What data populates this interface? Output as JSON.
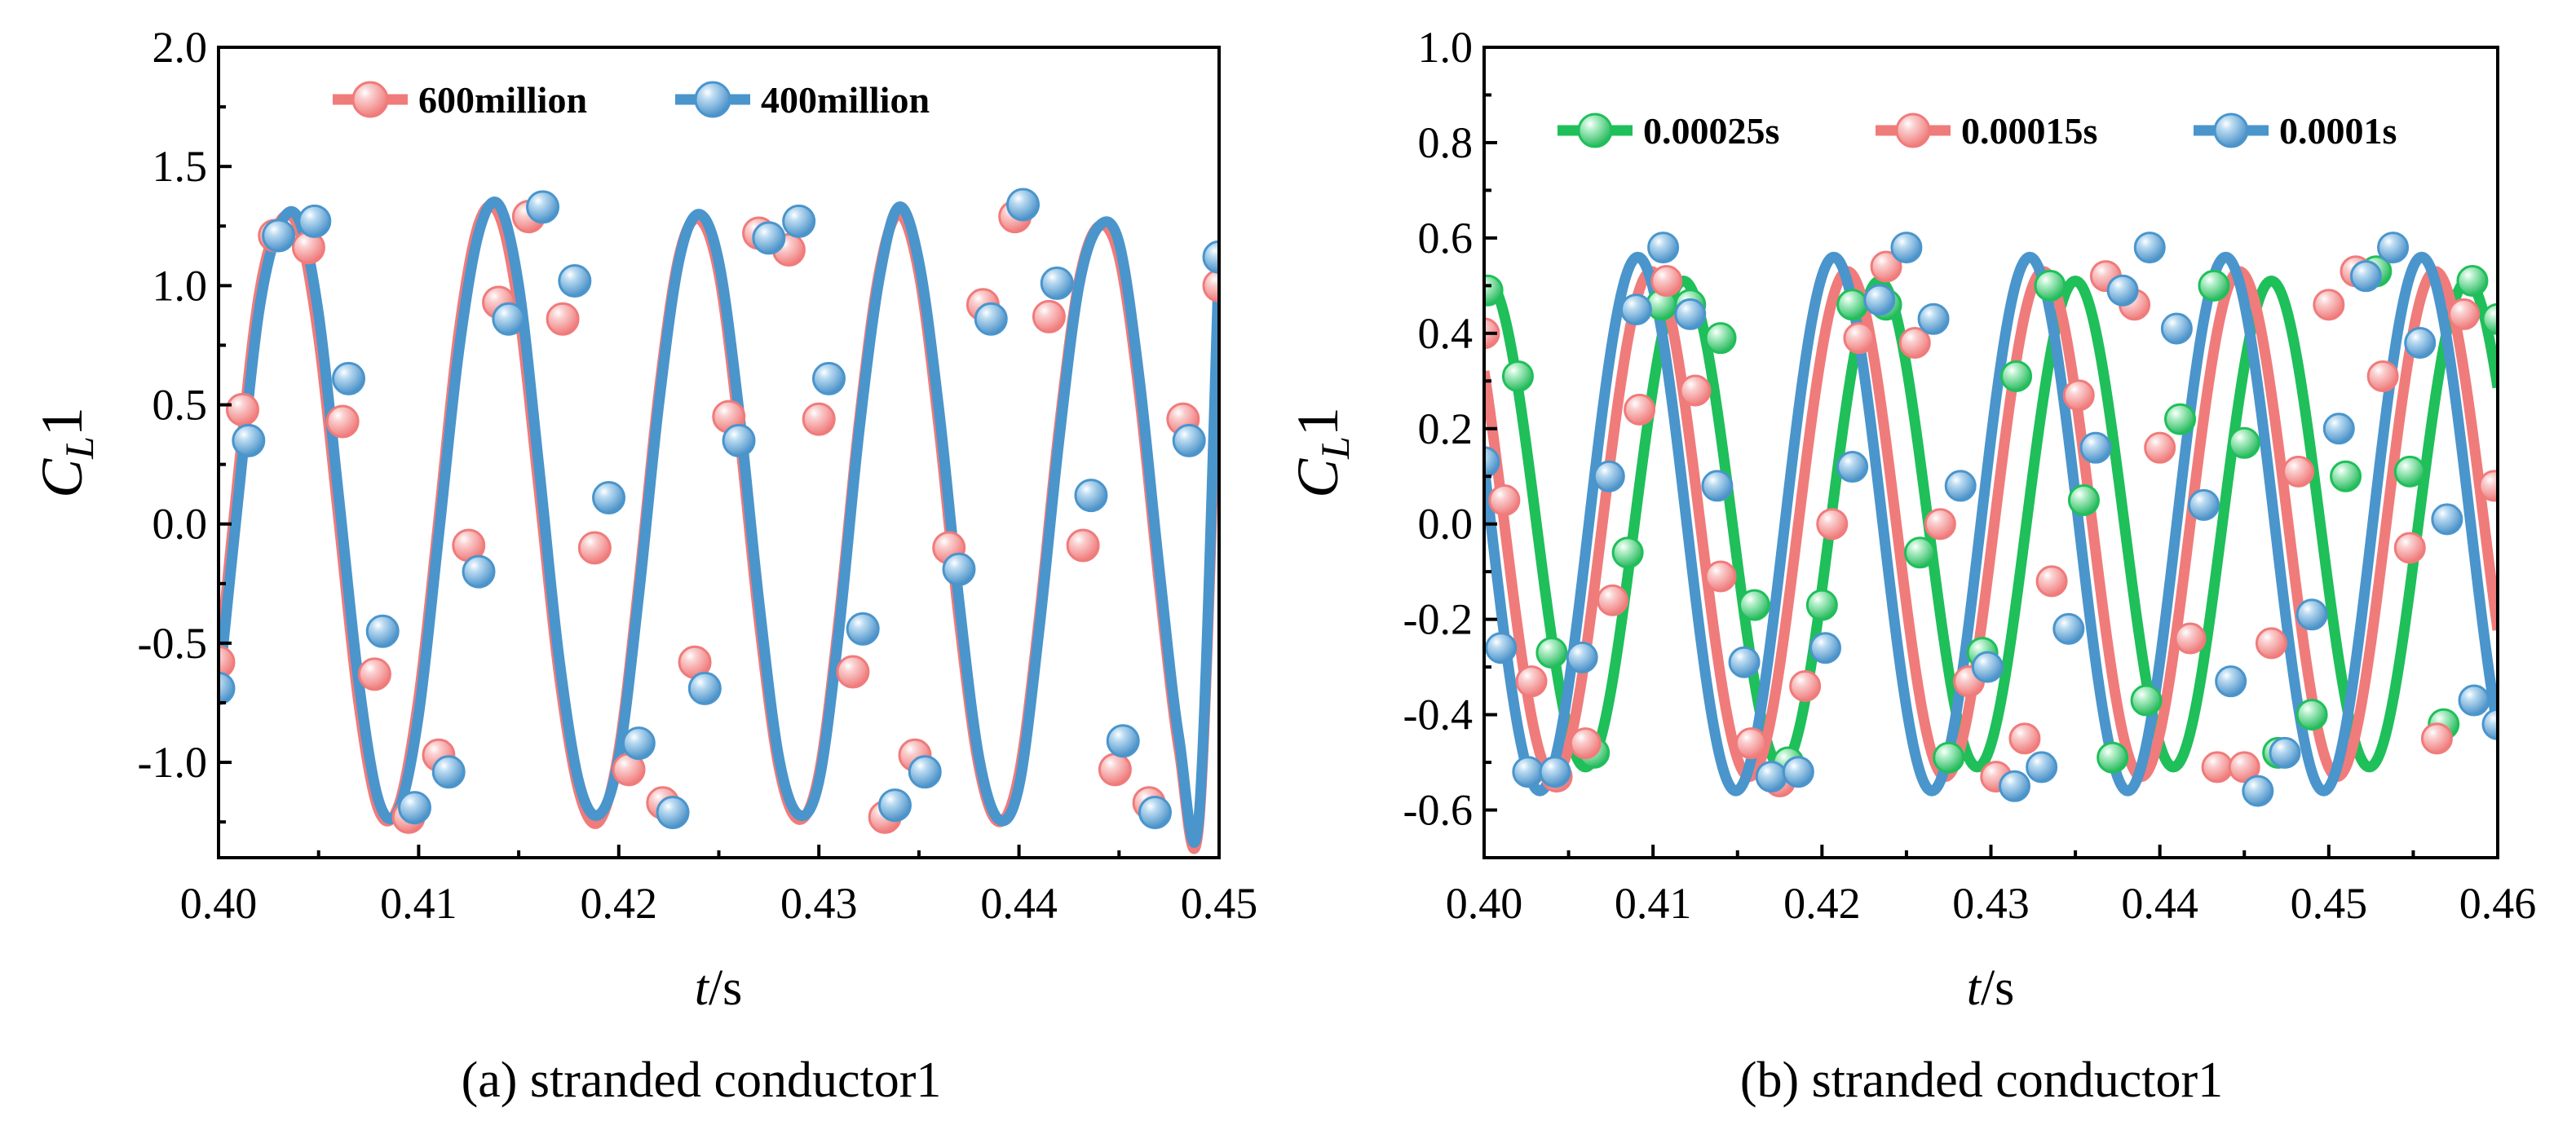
{
  "chart_data": [
    {
      "type": "line",
      "panel": "a",
      "caption": "(a) stranded conductor1",
      "xlabel_italic": "t",
      "xlabel_rest": "/s",
      "ylabel_main": "C",
      "ylabel_sub": "L",
      "ylabel_tail": "1",
      "xlim": [
        0.4,
        0.45
      ],
      "ylim": [
        -1.4,
        2.0
      ],
      "xticks": [
        "0.40",
        "0.41",
        "0.42",
        "0.43",
        "0.44",
        "0.45"
      ],
      "xtick_values": [
        0.4,
        0.41,
        0.42,
        0.43,
        0.44,
        0.45
      ],
      "yticks": [
        "-1.0",
        "-0.5",
        "0.0",
        "0.5",
        "1.0",
        "1.5",
        "2.0"
      ],
      "ytick_values": [
        -1.0,
        -0.5,
        0.0,
        0.5,
        1.0,
        1.5,
        2.0
      ],
      "legend_position": "top",
      "series": [
        {
          "name": "600million",
          "color": "#f07b7b",
          "marker_color": "#f7a8a8",
          "x": [
            0.4,
            0.401,
            0.402,
            0.403,
            0.404,
            0.405,
            0.406,
            0.407,
            0.408,
            0.409,
            0.41,
            0.411,
            0.412,
            0.413,
            0.414,
            0.415,
            0.416,
            0.417,
            0.418,
            0.419,
            0.42,
            0.421,
            0.422,
            0.423,
            0.424,
            0.425,
            0.426,
            0.427,
            0.428,
            0.429,
            0.43,
            0.431,
            0.432,
            0.433,
            0.434,
            0.435,
            0.436,
            0.437,
            0.438,
            0.439,
            0.44,
            0.441,
            0.442,
            0.443,
            0.444,
            0.445,
            0.446,
            0.447,
            0.448,
            0.449,
            0.45
          ],
          "y": [
            -0.62,
            0.22,
            0.95,
            1.26,
            1.24,
            0.78,
            0.02,
            -0.75,
            -1.2,
            -1.18,
            -0.73,
            0.02,
            0.8,
            1.26,
            1.3,
            0.9,
            0.15,
            -0.62,
            -1.12,
            -1.25,
            -0.95,
            -0.25,
            0.55,
            1.12,
            1.28,
            1.05,
            0.4,
            -0.4,
            -1.02,
            -1.24,
            -1.05,
            -0.4,
            0.42,
            1.05,
            1.3,
            1.05,
            0.4,
            -0.4,
            -1.02,
            -1.25,
            -1.05,
            -0.4,
            0.4,
            1.02,
            1.25,
            1.12,
            0.55,
            -0.25,
            -0.95,
            -1.25,
            0.98
          ],
          "markers_x": [
            0.4,
            0.4012,
            0.4028,
            0.4045,
            0.4062,
            0.4078,
            0.4095,
            0.411,
            0.4125,
            0.414,
            0.4155,
            0.4172,
            0.4188,
            0.4205,
            0.4222,
            0.4238,
            0.4255,
            0.427,
            0.4285,
            0.43,
            0.4317,
            0.4333,
            0.4348,
            0.4365,
            0.4382,
            0.4398,
            0.4415,
            0.4432,
            0.4448,
            0.4465,
            0.4482,
            0.45
          ],
          "markers_y": [
            -0.58,
            0.48,
            1.21,
            1.16,
            0.43,
            -0.63,
            -1.23,
            -0.97,
            -0.09,
            0.93,
            1.29,
            0.86,
            -0.1,
            -1.03,
            -1.17,
            -0.58,
            0.45,
            1.22,
            1.15,
            0.44,
            -0.62,
            -1.23,
            -0.97,
            -0.1,
            0.92,
            1.29,
            0.87,
            -0.09,
            -1.03,
            -1.17,
            0.44,
            1.0
          ]
        },
        {
          "name": "400million",
          "color": "#4a95cc",
          "marker_color": "#7fb8e0",
          "x": [
            0.4,
            0.401,
            0.402,
            0.403,
            0.404,
            0.405,
            0.406,
            0.407,
            0.408,
            0.409,
            0.41,
            0.411,
            0.412,
            0.413,
            0.414,
            0.415,
            0.416,
            0.417,
            0.418,
            0.419,
            0.42,
            0.421,
            0.422,
            0.423,
            0.424,
            0.425,
            0.426,
            0.427,
            0.428,
            0.429,
            0.43,
            0.431,
            0.432,
            0.433,
            0.434,
            0.435,
            0.436,
            0.437,
            0.438,
            0.439,
            0.44,
            0.441,
            0.442,
            0.443,
            0.444,
            0.445,
            0.446,
            0.447,
            0.448,
            0.449,
            0.45
          ],
          "y": [
            -0.7,
            0.12,
            0.88,
            1.24,
            1.28,
            0.88,
            0.12,
            -0.66,
            -1.16,
            -1.2,
            -0.8,
            -0.05,
            0.72,
            1.22,
            1.34,
            1.0,
            0.25,
            -0.55,
            -1.08,
            -1.22,
            -0.98,
            -0.3,
            0.5,
            1.1,
            1.3,
            1.1,
            0.48,
            -0.32,
            -0.98,
            -1.22,
            -1.08,
            -0.45,
            0.38,
            1.02,
            1.33,
            1.1,
            0.48,
            -0.32,
            -0.98,
            -1.24,
            -1.1,
            -0.45,
            0.35,
            1.0,
            1.25,
            1.18,
            0.62,
            -0.18,
            -0.9,
            -1.22,
            1.12
          ],
          "markers_x": [
            0.4,
            0.4015,
            0.403,
            0.4048,
            0.4065,
            0.4082,
            0.4098,
            0.4115,
            0.413,
            0.4145,
            0.4162,
            0.4178,
            0.4195,
            0.421,
            0.4227,
            0.4243,
            0.426,
            0.4275,
            0.429,
            0.4305,
            0.4322,
            0.4338,
            0.4353,
            0.437,
            0.4386,
            0.4402,
            0.4419,
            0.4436,
            0.4452,
            0.4468,
            0.4485,
            0.45
          ],
          "markers_y": [
            -0.69,
            0.35,
            1.21,
            1.27,
            0.61,
            -0.45,
            -1.19,
            -1.04,
            -0.2,
            0.86,
            1.33,
            1.02,
            0.11,
            -0.92,
            -1.21,
            -0.69,
            0.35,
            1.2,
            1.27,
            0.61,
            -0.44,
            -1.18,
            -1.04,
            -0.19,
            0.86,
            1.34,
            1.01,
            0.12,
            -0.91,
            -1.21,
            0.35,
            1.12
          ]
        }
      ]
    },
    {
      "type": "line",
      "panel": "b",
      "caption": "(b) stranded conductor1",
      "xlabel_italic": "t",
      "xlabel_rest": "/s",
      "ylabel_main": "C",
      "ylabel_sub": "L",
      "ylabel_tail": "1",
      "xlim": [
        0.4,
        0.46
      ],
      "ylim": [
        -0.7,
        1.0
      ],
      "xticks": [
        "0.40",
        "0.41",
        "0.42",
        "0.43",
        "0.44",
        "0.45",
        "0.46"
      ],
      "xtick_values": [
        0.4,
        0.41,
        0.42,
        0.43,
        0.44,
        0.45,
        0.46
      ],
      "yticks": [
        "-0.6",
        "-0.4",
        "-0.2",
        "0.0",
        "0.2",
        "0.4",
        "0.6",
        "0.8",
        "1.0"
      ],
      "ytick_values": [
        -0.6,
        -0.4,
        -0.2,
        0.0,
        0.2,
        0.4,
        0.6,
        0.8,
        1.0
      ],
      "legend_position": "top",
      "series": [
        {
          "name": "0.00025s",
          "color": "#1fbf5a",
          "marker_color": "#5ad68a",
          "period": 0.0116,
          "amplitude": 0.51,
          "peak_x": 0.4002,
          "markers_x": [
            0.4002,
            0.402,
            0.404,
            0.4065,
            0.4085,
            0.4105,
            0.4122,
            0.414,
            0.416,
            0.418,
            0.42,
            0.4218,
            0.4238,
            0.4258,
            0.4275,
            0.4295,
            0.4315,
            0.4335,
            0.4355,
            0.4372,
            0.4392,
            0.4412,
            0.4432,
            0.445,
            0.447,
            0.449,
            0.451,
            0.4528,
            0.4548,
            0.4568,
            0.4585,
            0.46
          ],
          "markers_y": [
            0.49,
            0.31,
            -0.27,
            -0.48,
            -0.06,
            0.46,
            0.46,
            0.39,
            -0.17,
            -0.5,
            -0.17,
            0.46,
            0.46,
            -0.06,
            -0.49,
            -0.27,
            0.31,
            0.5,
            0.05,
            -0.49,
            -0.37,
            0.22,
            0.5,
            0.17,
            -0.48,
            -0.4,
            0.1,
            0.53,
            0.11,
            -0.42,
            0.51,
            0.43
          ]
        },
        {
          "name": "0.00015s",
          "color": "#f07b7b",
          "marker_color": "#f7a8a8",
          "period": 0.0116,
          "amplitude": 0.53,
          "peak_x": 0.4099,
          "markers_x": [
            0.4,
            0.4012,
            0.4028,
            0.4043,
            0.406,
            0.4076,
            0.4092,
            0.4108,
            0.4125,
            0.414,
            0.4158,
            0.4175,
            0.419,
            0.4206,
            0.4222,
            0.4238,
            0.4255,
            0.427,
            0.4287,
            0.4303,
            0.432,
            0.4336,
            0.4352,
            0.4368,
            0.4385,
            0.44,
            0.4418,
            0.4434,
            0.445,
            0.4466,
            0.4482,
            0.45,
            0.4516,
            0.4532,
            0.4548,
            0.4564,
            0.458,
            0.4598
          ],
          "markers_y": [
            0.4,
            0.05,
            -0.33,
            -0.53,
            -0.46,
            -0.16,
            0.24,
            0.51,
            0.28,
            -0.11,
            -0.46,
            -0.54,
            -0.34,
            0.0,
            0.39,
            0.54,
            0.38,
            0.0,
            -0.33,
            -0.53,
            -0.45,
            -0.12,
            0.27,
            0.52,
            0.46,
            0.16,
            -0.24,
            -0.51,
            -0.51,
            -0.25,
            0.11,
            0.46,
            0.53,
            0.31,
            -0.05,
            -0.45,
            0.44,
            0.08
          ]
        },
        {
          "name": "0.0001s",
          "color": "#4a95cc",
          "marker_color": "#7fb8e0",
          "period": 0.0116,
          "amplitude": 0.56,
          "peak_x": 0.4091,
          "markers_x": [
            0.4,
            0.401,
            0.4026,
            0.4042,
            0.4058,
            0.4074,
            0.409,
            0.4106,
            0.4122,
            0.4138,
            0.4154,
            0.417,
            0.4186,
            0.4202,
            0.4218,
            0.4234,
            0.425,
            0.4266,
            0.4282,
            0.4298,
            0.4314,
            0.433,
            0.4346,
            0.4362,
            0.4378,
            0.4394,
            0.441,
            0.4426,
            0.4442,
            0.4458,
            0.4474,
            0.449,
            0.4506,
            0.4522,
            0.4538,
            0.4554,
            0.457,
            0.4586,
            0.46
          ],
          "markers_y": [
            0.13,
            -0.26,
            -0.52,
            -0.52,
            -0.28,
            0.1,
            0.45,
            0.58,
            0.44,
            0.08,
            -0.29,
            -0.53,
            -0.52,
            -0.26,
            0.12,
            0.47,
            0.58,
            0.43,
            0.08,
            -0.3,
            -0.55,
            -0.51,
            -0.22,
            0.16,
            0.49,
            0.58,
            0.41,
            0.04,
            -0.33,
            -0.56,
            -0.48,
            -0.19,
            0.2,
            0.52,
            0.58,
            0.38,
            0.01,
            -0.37,
            -0.42
          ]
        }
      ]
    }
  ]
}
